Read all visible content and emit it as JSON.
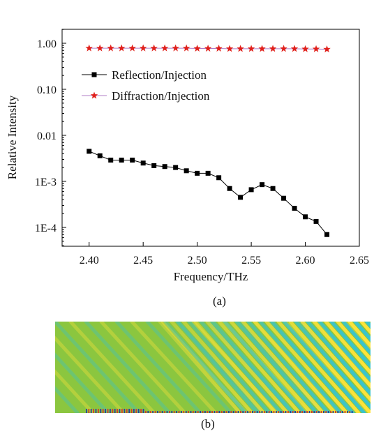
{
  "chart_data": {
    "type": "line",
    "title": "",
    "xlabel": "Frequency/THz",
    "ylabel": "Relative Intensity",
    "xlim": [
      2.375,
      2.65
    ],
    "ylim": [
      5e-05,
      2.0
    ],
    "yscale": "log",
    "x_ticks": [
      2.4,
      2.45,
      2.5,
      2.55,
      2.6,
      2.65
    ],
    "x_tick_labels": [
      "2.40",
      "2.45",
      "2.50",
      "2.55",
      "2.60",
      "2.65"
    ],
    "y_ticks": [
      1.0,
      0.1,
      0.01,
      0.001,
      0.0001
    ],
    "y_tick_labels": [
      "1.00",
      "0.10",
      "0.01",
      "1E-3",
      "1E-4"
    ],
    "grid": false,
    "legend_position": "upper-left",
    "x": [
      2.4,
      2.41,
      2.42,
      2.43,
      2.44,
      2.45,
      2.46,
      2.47,
      2.48,
      2.49,
      2.5,
      2.51,
      2.52,
      2.53,
      2.54,
      2.55,
      2.56,
      2.57,
      2.58,
      2.59,
      2.6,
      2.61,
      2.62
    ],
    "series": [
      {
        "name": "Reflection/Injection",
        "color": "#000000",
        "marker": "square",
        "values": [
          0.0045,
          0.0036,
          0.0029,
          0.0029,
          0.0029,
          0.0025,
          0.0022,
          0.0021,
          0.002,
          0.0017,
          0.0015,
          0.0015,
          0.0012,
          0.0007,
          0.00045,
          0.00066,
          0.00085,
          0.0007,
          0.00043,
          0.00026,
          0.00017,
          0.000135,
          7e-05
        ]
      },
      {
        "name": "Diffraction/Injection",
        "color": "#e0201b",
        "line_color": "#b07cc6",
        "marker": "star",
        "values": [
          0.78,
          0.78,
          0.78,
          0.78,
          0.78,
          0.78,
          0.78,
          0.78,
          0.78,
          0.78,
          0.77,
          0.77,
          0.77,
          0.76,
          0.76,
          0.76,
          0.76,
          0.76,
          0.76,
          0.76,
          0.75,
          0.75,
          0.74
        ]
      }
    ]
  },
  "captions": {
    "a": "(a)",
    "b": "(b)"
  },
  "field_image": {
    "background_color": "#8bc63f",
    "wave_colors": [
      "#ffe33a",
      "#38c3cf"
    ],
    "edge_colors": [
      "#d63a2e",
      "#2a3fa0"
    ]
  }
}
